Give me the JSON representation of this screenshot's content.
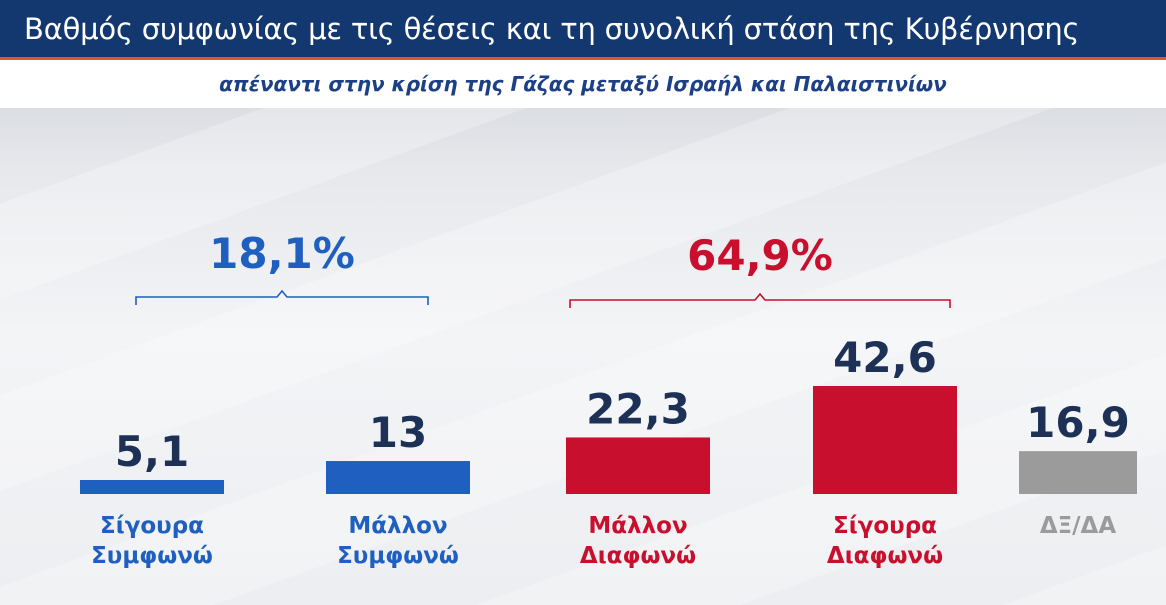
{
  "header": {
    "title": "Βαθμός συμφωνίας με τις θέσεις και τη συνολική στάση της Κυβέρνησης",
    "subtitle": "απέναντι στην κρίση της Γάζας μεταξύ Ισραήλ και Παλαιστινίων"
  },
  "colors": {
    "title_bar": "#13376f",
    "accent_line": "#e2562b",
    "agree": "#1f5fbf",
    "disagree": "#c8102e",
    "no_answer": "#9b9b9b",
    "value_text": "#1c3155"
  },
  "chart_data": {
    "type": "bar",
    "categories": [
      [
        "Σίγουρα",
        "Συμφωνώ"
      ],
      [
        "Μάλλον",
        "Συμφωνώ"
      ],
      [
        "Μάλλον",
        "Διαφωνώ"
      ],
      [
        "Σίγουρα",
        "Διαφωνώ"
      ],
      [
        "ΔΞ/ΔΑ"
      ]
    ],
    "values": [
      5.1,
      13,
      22.3,
      42.6,
      16.9
    ],
    "value_labels": [
      "5,1",
      "13",
      "22,3",
      "42,6",
      "16,9"
    ],
    "groups": [
      "agree",
      "agree",
      "disagree",
      "disagree",
      "no_answer"
    ],
    "totals": [
      {
        "label": "18,1%",
        "value": 18.1,
        "covers": [
          0,
          1
        ],
        "group": "agree"
      },
      {
        "label": "64,9%",
        "value": 64.9,
        "covers": [
          2,
          3
        ],
        "group": "disagree"
      }
    ],
    "ylim": [
      0,
      42.6
    ],
    "grid": false,
    "legend": "none"
  }
}
